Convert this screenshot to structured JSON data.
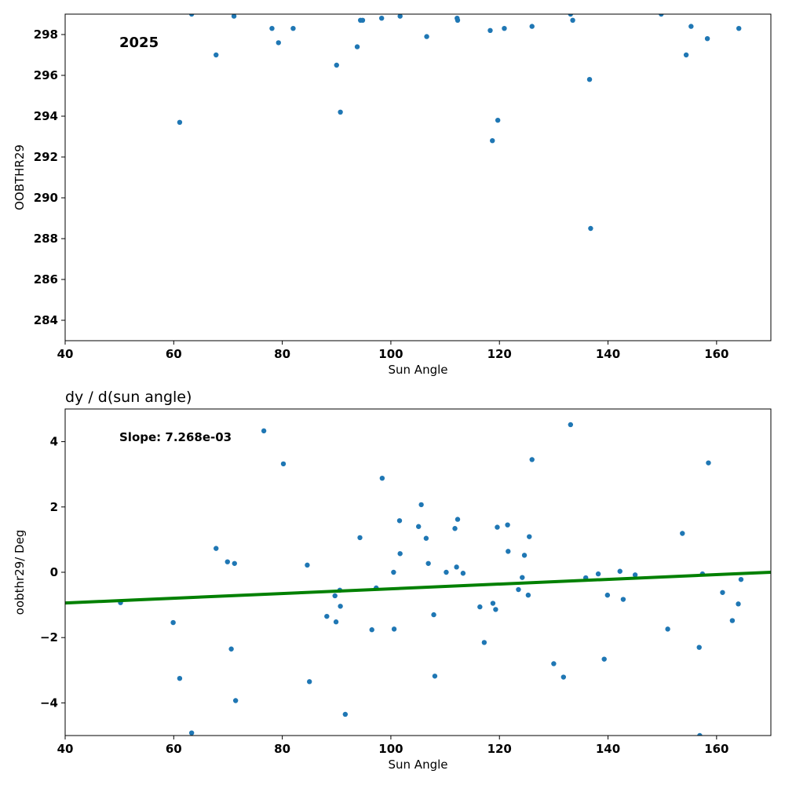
{
  "chart_data": [
    {
      "type": "scatter",
      "title": "",
      "annotation": "2025",
      "xlabel": "Sun Angle",
      "ylabel": "OOBTHR29",
      "xlim": [
        40,
        170
      ],
      "ylim": [
        283,
        299
      ],
      "xticks": [
        40,
        60,
        80,
        100,
        120,
        140,
        160
      ],
      "yticks": [
        284,
        286,
        288,
        290,
        292,
        294,
        296,
        298
      ],
      "grid": false,
      "marker_color": "#1f77b4",
      "points": [
        [
          61.1,
          293.7
        ],
        [
          63.3,
          299.0
        ],
        [
          67.8,
          297.0
        ],
        [
          71.1,
          298.9
        ],
        [
          78.1,
          298.3
        ],
        [
          79.3,
          297.6
        ],
        [
          82.0,
          298.3
        ],
        [
          90.0,
          296.5
        ],
        [
          90.7,
          294.2
        ],
        [
          93.8,
          297.4
        ],
        [
          94.4,
          298.7
        ],
        [
          94.8,
          298.7
        ],
        [
          98.3,
          298.8
        ],
        [
          101.7,
          298.9
        ],
        [
          106.6,
          297.9
        ],
        [
          112.2,
          298.8
        ],
        [
          112.3,
          298.7
        ],
        [
          118.3,
          298.2
        ],
        [
          118.7,
          292.8
        ],
        [
          119.7,
          293.8
        ],
        [
          120.9,
          298.3
        ],
        [
          126.0,
          298.4
        ],
        [
          133.1,
          299.0
        ],
        [
          133.5,
          298.7
        ],
        [
          136.6,
          295.8
        ],
        [
          136.8,
          288.5
        ],
        [
          149.8,
          299.0
        ],
        [
          154.4,
          297.0
        ],
        [
          155.3,
          298.4
        ],
        [
          158.3,
          297.8
        ],
        [
          164.1,
          298.3
        ]
      ]
    },
    {
      "type": "scatter",
      "title": "dy / d(sun angle)",
      "annotation": "Slope: 7.268e-03",
      "xlabel": "Sun Angle",
      "ylabel": "oobthr29/ Deg",
      "xlim": [
        40,
        170
      ],
      "ylim": [
        -5,
        5
      ],
      "xticks": [
        40,
        60,
        80,
        100,
        120,
        140,
        160
      ],
      "yticks": [
        -4,
        -2,
        0,
        2,
        4
      ],
      "ytick_labels": [
        "−4",
        "−2",
        "0",
        "2",
        "4"
      ],
      "grid": false,
      "marker_color": "#1f77b4",
      "fit_line": {
        "color": "#008000",
        "x": [
          40,
          170
        ],
        "y": [
          -0.94,
          0.0
        ]
      },
      "points": [
        [
          50.2,
          -0.93
        ],
        [
          59.9,
          -1.54
        ],
        [
          61.1,
          -3.25
        ],
        [
          63.3,
          -4.92
        ],
        [
          67.8,
          0.73
        ],
        [
          69.9,
          0.32
        ],
        [
          70.6,
          -2.35
        ],
        [
          71.2,
          0.27
        ],
        [
          71.4,
          -3.93
        ],
        [
          76.6,
          4.33
        ],
        [
          80.2,
          3.32
        ],
        [
          84.6,
          0.22
        ],
        [
          85.0,
          -3.35
        ],
        [
          88.2,
          -1.35
        ],
        [
          89.7,
          -0.72
        ],
        [
          89.9,
          -1.52
        ],
        [
          90.6,
          -0.55
        ],
        [
          90.7,
          -1.04
        ],
        [
          91.6,
          -4.35
        ],
        [
          94.3,
          1.06
        ],
        [
          96.5,
          -1.76
        ],
        [
          97.3,
          -0.48
        ],
        [
          98.4,
          2.88
        ],
        [
          100.5,
          0.0
        ],
        [
          100.6,
          -1.74
        ],
        [
          101.6,
          1.58
        ],
        [
          101.7,
          0.57
        ],
        [
          105.1,
          1.4
        ],
        [
          105.6,
          2.07
        ],
        [
          106.5,
          1.04
        ],
        [
          106.9,
          0.27
        ],
        [
          107.9,
          -1.3
        ],
        [
          108.1,
          -3.18
        ],
        [
          110.2,
          0.0
        ],
        [
          111.8,
          1.34
        ],
        [
          112.1,
          0.16
        ],
        [
          112.3,
          1.62
        ],
        [
          113.3,
          -0.03
        ],
        [
          116.4,
          -1.06
        ],
        [
          117.2,
          -2.15
        ],
        [
          118.8,
          -0.95
        ],
        [
          119.3,
          -1.14
        ],
        [
          119.6,
          1.38
        ],
        [
          121.5,
          1.45
        ],
        [
          121.6,
          0.64
        ],
        [
          123.5,
          -0.53
        ],
        [
          124.2,
          -0.16
        ],
        [
          124.6,
          0.52
        ],
        [
          125.3,
          -0.7
        ],
        [
          125.5,
          1.09
        ],
        [
          126.0,
          3.45
        ],
        [
          130.0,
          -2.8
        ],
        [
          131.8,
          -3.21
        ],
        [
          133.1,
          4.52
        ],
        [
          135.9,
          -0.17
        ],
        [
          138.2,
          -0.05
        ],
        [
          139.3,
          -2.66
        ],
        [
          139.9,
          -0.7
        ],
        [
          142.2,
          0.03
        ],
        [
          142.8,
          -0.83
        ],
        [
          145.0,
          -0.08
        ],
        [
          151.0,
          -1.74
        ],
        [
          153.7,
          1.19
        ],
        [
          156.8,
          -2.3
        ],
        [
          156.9,
          -5.0
        ],
        [
          157.4,
          -0.05
        ],
        [
          158.5,
          3.35
        ],
        [
          161.1,
          -0.62
        ],
        [
          162.9,
          -1.48
        ],
        [
          164.0,
          -0.97
        ],
        [
          164.5,
          -0.22
        ]
      ]
    }
  ]
}
